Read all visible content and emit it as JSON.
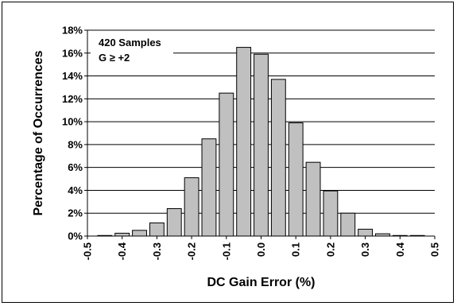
{
  "chart_data": {
    "type": "bar",
    "title": "",
    "xlabel": "DC Gain Error (%)",
    "ylabel": "Percentage of Occurrences",
    "annotations": [
      "420 Samples",
      "G ≥ +2"
    ],
    "x_tick_labels": [
      "-0.5",
      "-0.4",
      "-0.3",
      "-0.2",
      "-0.1",
      "0.0",
      "0.1",
      "0.2",
      "0.3",
      "0.4",
      "0.5"
    ],
    "xlim": [
      -0.5,
      0.5
    ],
    "x_tick_values": [
      -0.5,
      -0.4,
      -0.3,
      -0.2,
      -0.1,
      0.0,
      0.1,
      0.2,
      0.3,
      0.4,
      0.5
    ],
    "y_tick_labels": [
      "0%",
      "2%",
      "4%",
      "6%",
      "8%",
      "10%",
      "12%",
      "14%",
      "16%",
      "18%"
    ],
    "y_tick_values": [
      0,
      2,
      4,
      6,
      8,
      10,
      12,
      14,
      16,
      18
    ],
    "ylim": [
      0,
      18
    ],
    "grid": "horizontal",
    "bar_color": "#c0c0c0",
    "bin_width": 0.05,
    "x": [
      -0.45,
      -0.4,
      -0.35,
      -0.3,
      -0.25,
      -0.2,
      -0.15,
      -0.1,
      -0.05,
      0.0,
      0.05,
      0.1,
      0.15,
      0.2,
      0.25,
      0.3,
      0.35,
      0.4,
      0.45
    ],
    "values": [
      0.05,
      0.25,
      0.5,
      1.15,
      2.4,
      5.1,
      8.5,
      12.5,
      16.5,
      15.9,
      13.7,
      9.9,
      6.45,
      3.95,
      2.0,
      0.6,
      0.2,
      0.05,
      0.05
    ]
  }
}
